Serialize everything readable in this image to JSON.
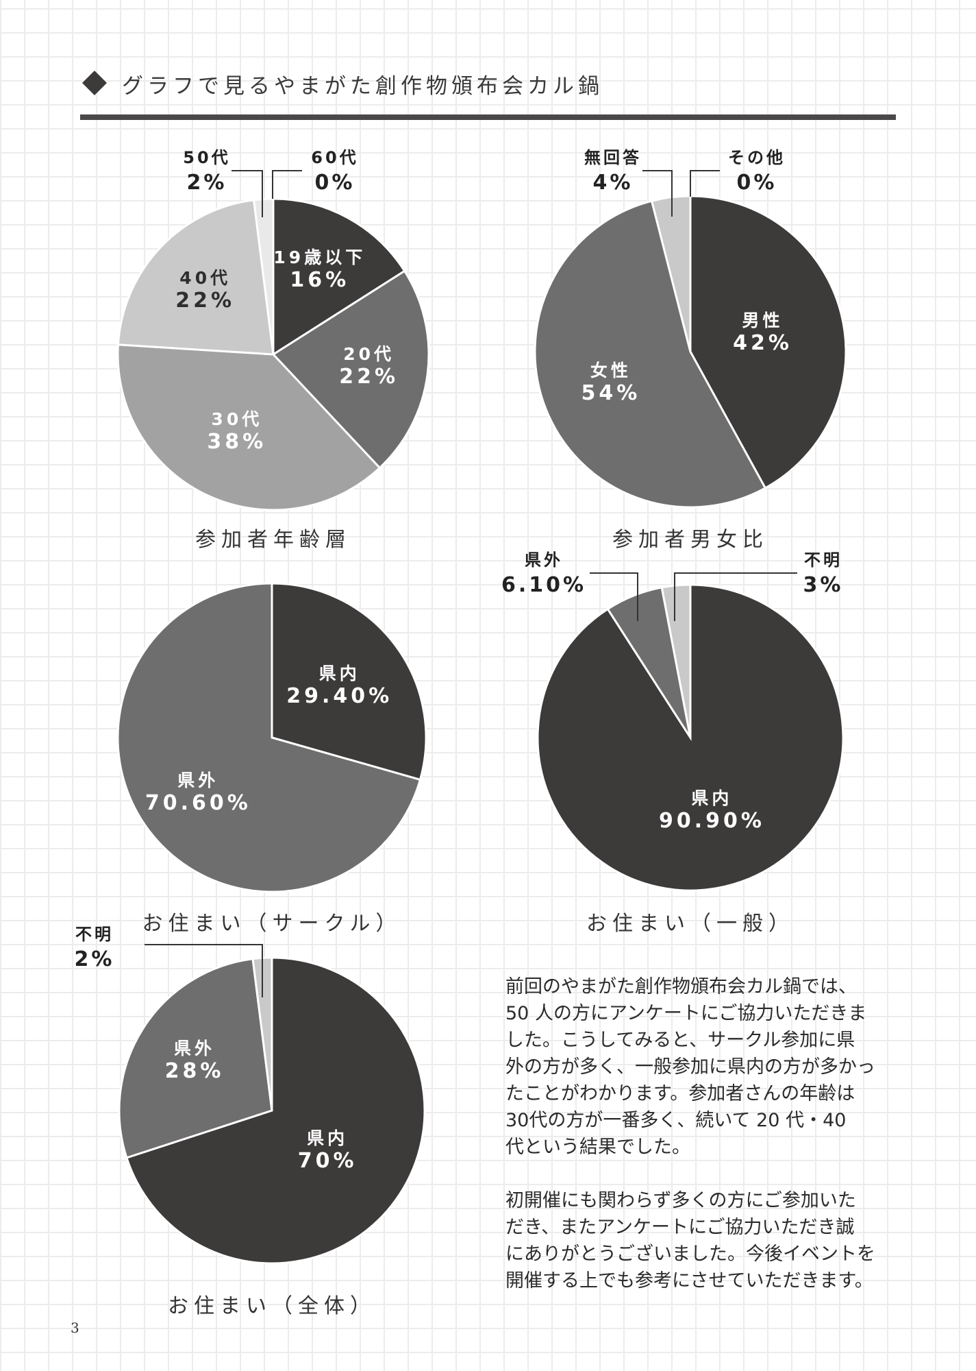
{
  "header": {
    "title": "グラフで見るやまがた創作物頒布会カル鍋",
    "icon": "diamond-icon"
  },
  "colors": {
    "c1": "#3d3a3a",
    "c2": "#6f6e6e",
    "c3": "#a3a2a2",
    "c4": "#c9c9c9",
    "c5": "#e9e9e9",
    "stroke": "#ffffff"
  },
  "chart_data": [
    {
      "type": "pie",
      "title": "参加者年齢層",
      "slices": [
        {
          "label": "19歳以下",
          "value": 16,
          "display": "16%",
          "color": "#3d3a3a"
        },
        {
          "label": "20代",
          "value": 22,
          "display": "22%",
          "color": "#6f6e6e"
        },
        {
          "label": "30代",
          "value": 38,
          "display": "38%",
          "color": "#a3a2a2"
        },
        {
          "label": "40代",
          "value": 22,
          "display": "22%",
          "color": "#c9c9c9"
        },
        {
          "label": "50代",
          "value": 2,
          "display": "2%",
          "color": "#e9e9e9"
        },
        {
          "label": "60代",
          "value": 0,
          "display": "0%",
          "color": "#e9e9e9"
        }
      ]
    },
    {
      "type": "pie",
      "title": "参加者男女比",
      "slices": [
        {
          "label": "男性",
          "value": 42,
          "display": "42%",
          "color": "#3d3a3a"
        },
        {
          "label": "女性",
          "value": 54,
          "display": "54%",
          "color": "#6f6e6e"
        },
        {
          "label": "無回答",
          "value": 4,
          "display": "4%",
          "color": "#c9c9c9"
        },
        {
          "label": "その他",
          "value": 0,
          "display": "0%",
          "color": "#c9c9c9"
        }
      ]
    },
    {
      "type": "pie",
      "title": "お住まい（サークル）",
      "slices": [
        {
          "label": "県内",
          "value": 29.4,
          "display": "29.40%",
          "color": "#3d3a3a"
        },
        {
          "label": "県外",
          "value": 70.6,
          "display": "70.60%",
          "color": "#6f6e6e"
        }
      ]
    },
    {
      "type": "pie",
      "title": "お住まい（一般）",
      "slices": [
        {
          "label": "県内",
          "value": 90.9,
          "display": "90.90%",
          "color": "#3d3a3a"
        },
        {
          "label": "県外",
          "value": 6.1,
          "display": "6.10%",
          "color": "#6f6e6e"
        },
        {
          "label": "不明",
          "value": 3,
          "display": "3%",
          "color": "#c9c9c9"
        }
      ]
    },
    {
      "type": "pie",
      "title": "お住まい（全体）",
      "slices": [
        {
          "label": "県内",
          "value": 70,
          "display": "70%",
          "color": "#3d3a3a"
        },
        {
          "label": "県外",
          "value": 28,
          "display": "28%",
          "color": "#6f6e6e"
        },
        {
          "label": "不明",
          "value": 2,
          "display": "2%",
          "color": "#c9c9c9"
        }
      ]
    }
  ],
  "body_text": [
    "前回のやまがた創作物頒布会カル鍋では、",
    "50 人の方にアンケートにご協力いただきま",
    "した。こうしてみると、サークル参加に県",
    "外の方が多く、一般参加に県内の方が多かっ",
    "たことがわかります。参加者さんの年齢は",
    "30代の方が一番多く、続いて 20 代・40",
    "代という結果でした。",
    "",
    "初開催にも関わらず多くの方にご参加いた",
    "だき、またアンケートにご協力いただき誠",
    "にありがとうございました。今後イベントを",
    "開催する上でも参考にさせていただきます。"
  ],
  "page_number": "3"
}
